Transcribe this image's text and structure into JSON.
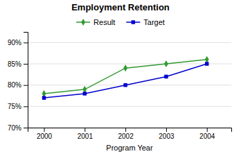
{
  "chart_data": {
    "type": "line",
    "title": "Employment Retention",
    "xlabel": "Program Year",
    "x": [
      2000,
      2001,
      2002,
      2003,
      2004
    ],
    "series": [
      {
        "name": "Result",
        "color": "#339933",
        "marker": "diamond",
        "values": [
          0.78,
          0.79,
          0.84,
          0.85,
          0.86
        ]
      },
      {
        "name": "Target",
        "color": "#0000CC",
        "marker": "square",
        "values": [
          0.77,
          0.78,
          0.8,
          0.82,
          0.85
        ]
      }
    ],
    "xlim": [
      1999.6,
      2004.6
    ],
    "xticks": [
      2000,
      2001,
      2002,
      2003,
      2004
    ],
    "ylim": [
      0.7,
      0.925
    ],
    "yticks": [
      {
        "value": 0.7,
        "label": "70%"
      },
      {
        "value": 0.75,
        "label": "75%"
      },
      {
        "value": 0.8,
        "label": "80%"
      },
      {
        "value": 0.85,
        "label": "85%"
      },
      {
        "value": 0.9,
        "label": "90%"
      }
    ],
    "grid": true,
    "legend": "top"
  }
}
